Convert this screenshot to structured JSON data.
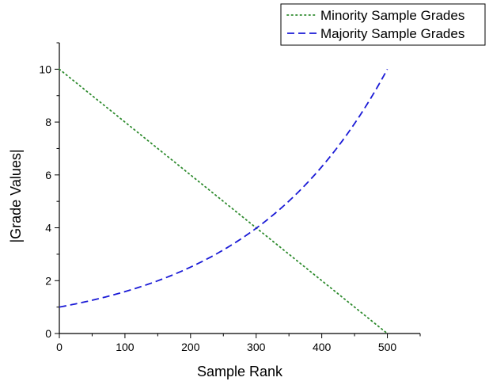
{
  "chart_data": {
    "type": "line",
    "title": "",
    "xlabel": "Sample Rank",
    "ylabel": "|Grade Values|",
    "xlim": [
      0,
      550
    ],
    "ylim": [
      0,
      11
    ],
    "xticks": [
      0,
      100,
      200,
      300,
      400,
      500
    ],
    "yticks": [
      0,
      2,
      4,
      6,
      8,
      10
    ],
    "xtick_labels": [
      "0",
      "100",
      "200",
      "300",
      "400",
      "500"
    ],
    "ytick_labels": [
      "0",
      "2",
      "4",
      "6",
      "8",
      "10"
    ],
    "grid": false,
    "legend_position": "top-right",
    "series": [
      {
        "name": "Minority Sample Grades",
        "style": "dotted",
        "color": "#2e8b2e",
        "x": [
          0,
          50,
          100,
          150,
          200,
          250,
          300,
          350,
          400,
          450,
          500
        ],
        "y": [
          10,
          9,
          8,
          7,
          6,
          5,
          4,
          3,
          2,
          1,
          0
        ]
      },
      {
        "name": "Majority Sample Grades",
        "style": "dashed",
        "color": "#1a1ad6",
        "x": [
          0,
          50,
          100,
          150,
          200,
          250,
          300,
          350,
          400,
          450,
          500
        ],
        "y": [
          1,
          1.26,
          1.58,
          2.0,
          2.51,
          3.16,
          3.98,
          5.01,
          6.31,
          7.94,
          10
        ]
      }
    ]
  }
}
